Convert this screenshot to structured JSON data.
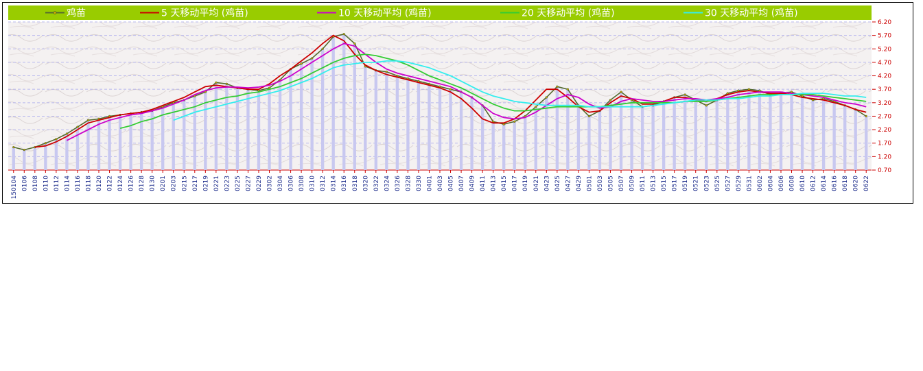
{
  "chart_data": {
    "type": "line",
    "legend": {
      "placement": "top",
      "background": "#99cc00",
      "entries": [
        {
          "label": "鸡苗",
          "color": "#556b2f"
        },
        {
          "label": "5 天移动平均 (鸡苗)",
          "color": "#cc0000"
        },
        {
          "label": "10 天移动平均 (鸡苗)",
          "color": "#cc00cc"
        },
        {
          "label": "20 天移动平均 (鸡苗)",
          "color": "#33cc33"
        },
        {
          "label": "30 天移动平均 (鸡苗)",
          "color": "#33eeee"
        }
      ]
    },
    "y_ticks": [
      "6.20",
      "5.70",
      "5.20",
      "4.70",
      "4.20",
      "3.70",
      "3.20",
      "2.70",
      "2.20",
      "1.70",
      "1.20",
      "0.70"
    ],
    "ylim": [
      0.7,
      6.2
    ],
    "grid": true,
    "bars_color": "#c8c8f0",
    "x_ticks": [
      "150104",
      "0106",
      "0108",
      "0110",
      "0112",
      "0114",
      "0116",
      "0118",
      "0120",
      "0122",
      "0124",
      "0126",
      "0128",
      "0130",
      "0201",
      "0203",
      "0215",
      "0217",
      "0219",
      "0221",
      "0223",
      "0225",
      "0227",
      "0229",
      "0302",
      "0304",
      "0306",
      "0308",
      "0310",
      "0312",
      "0314",
      "0316",
      "0318",
      "0320",
      "0322",
      "0324",
      "0326",
      "0328",
      "0330",
      "0401",
      "0403",
      "0405",
      "0407",
      "0409",
      "0411",
      "0413",
      "0415",
      "0417",
      "0419",
      "0421",
      "0423",
      "0425",
      "0427",
      "0429",
      "0501",
      "0503",
      "0505",
      "0507",
      "0509",
      "0511",
      "0513",
      "0515",
      "0517",
      "0519",
      "0521",
      "0523",
      "0525",
      "0527",
      "0529",
      "0531",
      "0602",
      "0604",
      "0606",
      "0608",
      "0610",
      "0612",
      "0614",
      "0616",
      "0618",
      "0620",
      "0622"
    ],
    "series": [
      {
        "name": "鸡苗",
        "color": "#556b2f",
        "values": [
          1.55,
          1.45,
          1.55,
          1.7,
          1.85,
          2.05,
          2.3,
          2.55,
          2.6,
          2.7,
          2.75,
          2.8,
          2.85,
          2.9,
          3.05,
          3.2,
          3.3,
          3.45,
          3.6,
          3.95,
          3.9,
          3.75,
          3.7,
          3.65,
          3.75,
          4.05,
          4.45,
          4.65,
          4.85,
          5.2,
          5.65,
          5.75,
          5.4,
          4.55,
          4.4,
          4.35,
          4.2,
          4.1,
          4.0,
          3.9,
          3.8,
          3.7,
          3.6,
          3.4,
          3.1,
          2.5,
          2.4,
          2.5,
          2.7,
          3.05,
          3.4,
          3.8,
          3.7,
          3.1,
          2.7,
          2.9,
          3.3,
          3.6,
          3.3,
          3.05,
          3.1,
          3.25,
          3.4,
          3.5,
          3.3,
          3.1,
          3.3,
          3.55,
          3.65,
          3.7,
          3.65,
          3.5,
          3.55,
          3.6,
          3.45,
          3.3,
          3.35,
          3.25,
          3.1,
          2.95,
          2.7
        ]
      },
      {
        "name": "5 天移动平均 (鸡苗)",
        "color": "#cc0000",
        "values": [
          null,
          null,
          1.55,
          1.6,
          1.75,
          1.95,
          2.2,
          2.45,
          2.55,
          2.65,
          2.75,
          2.8,
          2.85,
          2.95,
          3.1,
          3.25,
          3.4,
          3.6,
          3.8,
          3.85,
          3.8,
          3.75,
          3.7,
          3.7,
          3.9,
          4.2,
          4.45,
          4.75,
          5.05,
          5.4,
          5.7,
          5.5,
          5.0,
          4.6,
          4.4,
          4.25,
          4.15,
          4.05,
          3.95,
          3.85,
          3.75,
          3.6,
          3.35,
          3.0,
          2.6,
          2.45,
          2.45,
          2.6,
          2.9,
          3.3,
          3.7,
          3.7,
          3.4,
          3.05,
          2.85,
          2.9,
          3.2,
          3.45,
          3.35,
          3.15,
          3.15,
          3.25,
          3.4,
          3.4,
          3.3,
          3.25,
          3.35,
          3.5,
          3.6,
          3.65,
          3.6,
          3.55,
          3.55,
          3.5,
          3.4,
          3.35,
          3.3,
          3.2,
          3.1,
          2.95,
          2.85
        ]
      },
      {
        "name": "10 天移动平均 (鸡苗)",
        "color": "#cc00cc",
        "values": [
          null,
          null,
          null,
          null,
          null,
          1.8,
          2.0,
          2.2,
          2.4,
          2.55,
          2.65,
          2.75,
          2.8,
          2.9,
          3.0,
          3.15,
          3.3,
          3.5,
          3.65,
          3.75,
          3.78,
          3.78,
          3.75,
          3.78,
          3.85,
          4.0,
          4.2,
          4.45,
          4.7,
          4.95,
          5.2,
          5.4,
          5.3,
          5.0,
          4.7,
          4.45,
          4.3,
          4.2,
          4.1,
          4.0,
          3.9,
          3.8,
          3.6,
          3.4,
          3.1,
          2.8,
          2.65,
          2.6,
          2.65,
          2.85,
          3.1,
          3.35,
          3.5,
          3.4,
          3.15,
          3.0,
          3.05,
          3.25,
          3.35,
          3.3,
          3.25,
          3.25,
          3.3,
          3.35,
          3.35,
          3.3,
          3.35,
          3.4,
          3.5,
          3.55,
          3.6,
          3.6,
          3.6,
          3.55,
          3.5,
          3.45,
          3.4,
          3.3,
          3.2,
          3.15,
          3.05
        ]
      },
      {
        "name": "20 天移动平均 (鸡苗)",
        "color": "#33cc33",
        "values": [
          null,
          null,
          null,
          null,
          null,
          null,
          null,
          null,
          null,
          null,
          2.25,
          2.35,
          2.5,
          2.6,
          2.75,
          2.85,
          2.95,
          3.05,
          3.2,
          3.3,
          3.4,
          3.45,
          3.55,
          3.6,
          3.7,
          3.8,
          3.95,
          4.1,
          4.3,
          4.5,
          4.7,
          4.85,
          4.95,
          5.0,
          4.95,
          4.85,
          4.75,
          4.6,
          4.4,
          4.2,
          4.05,
          3.9,
          3.75,
          3.55,
          3.35,
          3.15,
          3.0,
          2.9,
          2.9,
          2.95,
          3.0,
          3.05,
          3.05,
          3.05,
          3.05,
          3.05,
          3.1,
          3.15,
          3.2,
          3.2,
          3.2,
          3.2,
          3.2,
          3.25,
          3.25,
          3.25,
          3.3,
          3.35,
          3.4,
          3.45,
          3.5,
          3.5,
          3.5,
          3.5,
          3.5,
          3.5,
          3.45,
          3.4,
          3.35,
          3.3,
          3.25
        ]
      },
      {
        "name": "30 天移动平均 (鸡苗)",
        "color": "#33eeee",
        "values": [
          null,
          null,
          null,
          null,
          null,
          null,
          null,
          null,
          null,
          null,
          null,
          null,
          null,
          null,
          null,
          2.55,
          2.7,
          2.85,
          2.95,
          3.05,
          3.15,
          3.25,
          3.35,
          3.45,
          3.55,
          3.65,
          3.8,
          3.95,
          4.1,
          4.3,
          4.5,
          4.6,
          4.65,
          4.7,
          4.7,
          4.75,
          4.75,
          4.7,
          4.6,
          4.5,
          4.35,
          4.2,
          4.0,
          3.8,
          3.6,
          3.45,
          3.35,
          3.25,
          3.2,
          3.15,
          3.1,
          3.1,
          3.1,
          3.1,
          3.05,
          3.05,
          3.05,
          3.05,
          3.05,
          3.05,
          3.1,
          3.15,
          3.2,
          3.25,
          3.3,
          3.3,
          3.3,
          3.35,
          3.35,
          3.4,
          3.45,
          3.45,
          3.5,
          3.5,
          3.55,
          3.55,
          3.55,
          3.5,
          3.45,
          3.45,
          3.4
        ]
      }
    ]
  }
}
